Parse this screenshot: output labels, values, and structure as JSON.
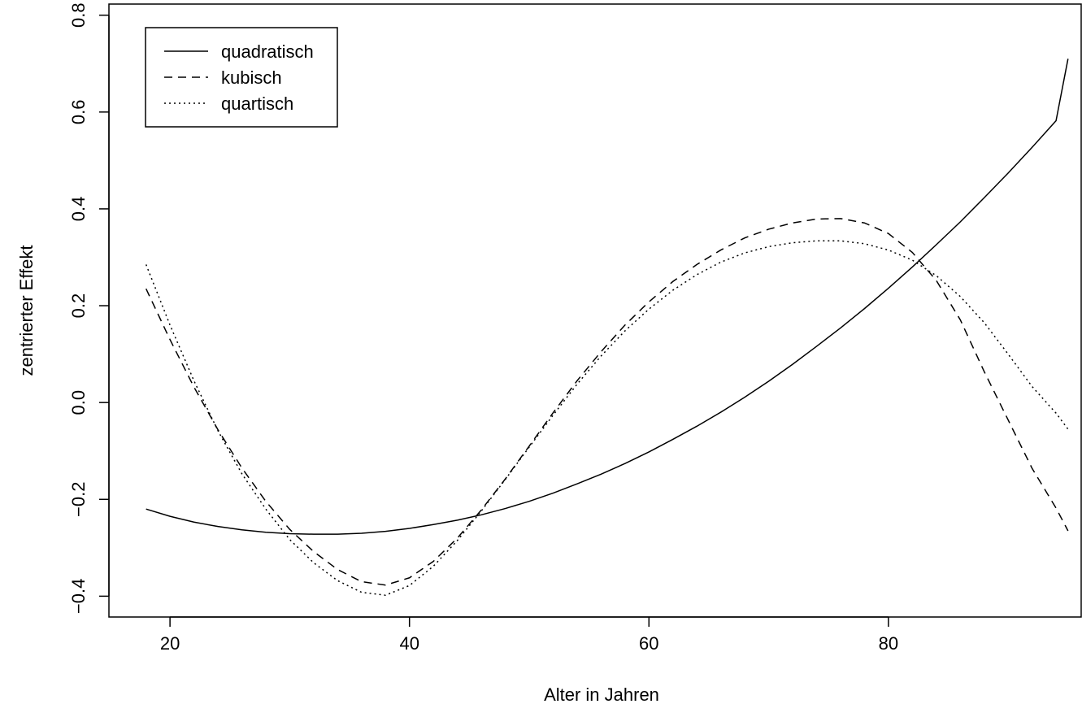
{
  "chart_data": {
    "type": "line",
    "title": "",
    "xlabel": "Alter in Jahren",
    "ylabel": "zentrierter Effekt",
    "xlim": [
      14.9,
      96.1
    ],
    "ylim": [
      -0.443,
      0.823
    ],
    "xticks": [
      20,
      40,
      60,
      80
    ],
    "xtick_labels": [
      "20",
      "40",
      "60",
      "80"
    ],
    "yticks": [
      -0.4,
      -0.2,
      0.0,
      0.2,
      0.4,
      0.6,
      0.8
    ],
    "ytick_labels": [
      "−0.4",
      "−0.2",
      "0.0",
      "0.2",
      "0.4",
      "0.6",
      "0.8"
    ],
    "grid": false,
    "legend_position": "top-left",
    "colors": {
      "line": "#000000",
      "background": "#ffffff"
    },
    "x": [
      18,
      20,
      22,
      24,
      26,
      28,
      30,
      32,
      34,
      36,
      38,
      40,
      42,
      44,
      46,
      48,
      50,
      52,
      54,
      56,
      58,
      60,
      62,
      64,
      66,
      68,
      70,
      72,
      74,
      76,
      78,
      80,
      82,
      84,
      86,
      88,
      90,
      92,
      94,
      95
    ],
    "series": [
      {
        "name": "quadratisch",
        "dash": "solid",
        "values": [
          -0.22,
          -0.235,
          -0.247,
          -0.256,
          -0.263,
          -0.268,
          -0.271,
          -0.272,
          -0.272,
          -0.27,
          -0.266,
          -0.26,
          -0.252,
          -0.243,
          -0.232,
          -0.219,
          -0.204,
          -0.187,
          -0.168,
          -0.148,
          -0.126,
          -0.102,
          -0.076,
          -0.049,
          -0.02,
          0.011,
          0.044,
          0.079,
          0.116,
          0.154,
          0.194,
          0.236,
          0.28,
          0.326,
          0.373,
          0.423,
          0.474,
          0.527,
          0.582,
          0.71
        ]
      },
      {
        "name": "kubisch",
        "dash": "dashed",
        "values": [
          0.235,
          0.13,
          0.032,
          -0.056,
          -0.135,
          -0.204,
          -0.262,
          -0.308,
          -0.345,
          -0.37,
          -0.377,
          -0.362,
          -0.328,
          -0.28,
          -0.222,
          -0.158,
          -0.09,
          -0.021,
          0.045,
          0.105,
          0.16,
          0.208,
          0.25,
          0.285,
          0.315,
          0.34,
          0.358,
          0.371,
          0.379,
          0.38,
          0.371,
          0.349,
          0.31,
          0.252,
          0.171,
          0.064,
          -0.036,
          -0.136,
          -0.218,
          -0.265
        ]
      },
      {
        "name": "quartisch",
        "dash": "dotted",
        "values": [
          0.285,
          0.16,
          0.045,
          -0.058,
          -0.147,
          -0.22,
          -0.283,
          -0.331,
          -0.368,
          -0.392,
          -0.398,
          -0.378,
          -0.338,
          -0.285,
          -0.224,
          -0.159,
          -0.092,
          -0.026,
          0.038,
          0.096,
          0.148,
          0.193,
          0.232,
          0.264,
          0.29,
          0.309,
          0.322,
          0.33,
          0.334,
          0.334,
          0.328,
          0.315,
          0.294,
          0.262,
          0.219,
          0.165,
          0.1,
          0.033,
          -0.022,
          -0.055
        ]
      }
    ]
  }
}
